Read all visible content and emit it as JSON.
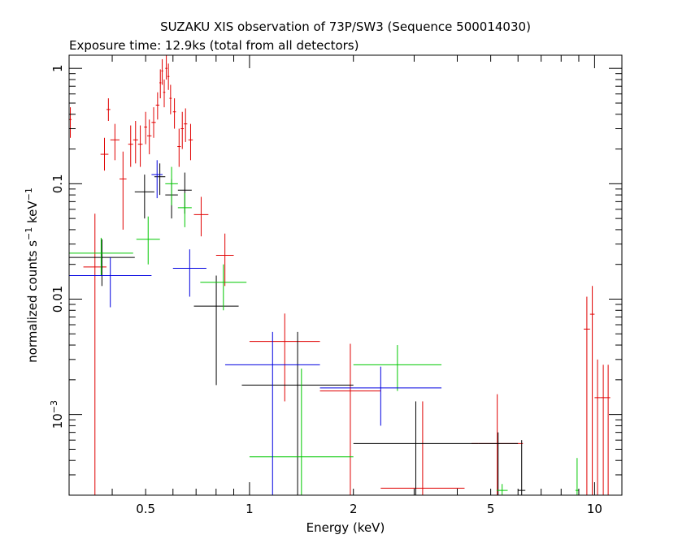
{
  "chart_data": {
    "type": "scatter",
    "title": "SUZAKU XIS observation of 73P/SW3 (Sequence 500014030)",
    "subtitle": "Exposure time: 12.9ks (total from all detectors)",
    "xlabel": "Energy (keV)",
    "ylabel_main": "normalized counts s",
    "ylabel_sup1": "−1",
    "ylabel_mid": " keV",
    "ylabel_sup2": "−1",
    "x_scale": "log",
    "y_scale": "log",
    "xlim": [
      0.3,
      12
    ],
    "ylim": [
      0.0002,
      1.3
    ],
    "x_ticks": [
      {
        "value": 0.5,
        "label": "0.5"
      },
      {
        "value": 1,
        "label": "1"
      },
      {
        "value": 2,
        "label": "2"
      },
      {
        "value": 5,
        "label": "5"
      },
      {
        "value": 10,
        "label": "10"
      }
    ],
    "y_ticks": [
      {
        "value": 0.001,
        "label_base": "10",
        "label_sup": "−3"
      },
      {
        "value": 0.01,
        "label_base": "0.01",
        "label_sup": ""
      },
      {
        "value": 0.1,
        "label_base": "0.1",
        "label_sup": ""
      },
      {
        "value": 1,
        "label_base": "1",
        "label_sup": ""
      }
    ],
    "grid": false,
    "series": [
      {
        "color": "#e00000",
        "points": [
          [
            0.3,
            0.305,
            0.36,
            0.25,
            0.46
          ],
          [
            0.33,
            0.385,
            0.019,
            0.0002,
            0.055
          ],
          [
            0.37,
            0.39,
            0.18,
            0.13,
            0.25
          ],
          [
            0.385,
            0.395,
            0.44,
            0.35,
            0.55
          ],
          [
            0.395,
            0.42,
            0.24,
            0.16,
            0.33
          ],
          [
            0.42,
            0.44,
            0.11,
            0.04,
            0.19
          ],
          [
            0.445,
            0.46,
            0.22,
            0.14,
            0.32
          ],
          [
            0.46,
            0.475,
            0.24,
            0.15,
            0.35
          ],
          [
            0.475,
            0.49,
            0.22,
            0.14,
            0.32
          ],
          [
            0.495,
            0.505,
            0.31,
            0.22,
            0.42
          ],
          [
            0.505,
            0.52,
            0.26,
            0.18,
            0.36
          ],
          [
            0.52,
            0.535,
            0.34,
            0.25,
            0.46
          ],
          [
            0.535,
            0.548,
            0.48,
            0.36,
            0.62
          ],
          [
            0.548,
            0.555,
            0.75,
            0.55,
            0.98
          ],
          [
            0.555,
            0.562,
            0.95,
            0.72,
            1.2
          ],
          [
            0.562,
            0.57,
            0.62,
            0.46,
            0.8
          ],
          [
            0.57,
            0.578,
            1.0,
            0.8,
            1.3
          ],
          [
            0.578,
            0.586,
            0.85,
            0.65,
            1.1
          ],
          [
            0.586,
            0.595,
            0.55,
            0.4,
            0.72
          ],
          [
            0.6,
            0.612,
            0.42,
            0.3,
            0.55
          ],
          [
            0.618,
            0.632,
            0.21,
            0.14,
            0.3
          ],
          [
            0.632,
            0.645,
            0.3,
            0.2,
            0.42
          ],
          [
            0.645,
            0.66,
            0.33,
            0.23,
            0.45
          ],
          [
            0.665,
            0.685,
            0.24,
            0.16,
            0.33
          ],
          [
            0.69,
            0.76,
            0.054,
            0.035,
            0.077
          ],
          [
            0.8,
            0.9,
            0.024,
            0.013,
            0.037
          ],
          [
            1.0,
            1.6,
            0.0043,
            0.0013,
            0.0075
          ],
          [
            1.6,
            2.4,
            0.0016,
            0.0002,
            0.0041
          ],
          [
            2.4,
            4.2,
            0.00023,
            0.0002,
            0.0013
          ],
          [
            4.4,
            6.2,
            0.00056,
            0.0002,
            0.0015
          ],
          [
            9.3,
            9.7,
            0.0055,
            0.0002,
            0.0105
          ],
          [
            9.7,
            10.0,
            0.0074,
            0.0002,
            0.013
          ],
          [
            10.0,
            10.4,
            0.0014,
            0.0002,
            0.003
          ],
          [
            10.4,
            10.8,
            0.0014,
            0.0002,
            0.0027
          ],
          [
            10.8,
            11.1,
            0.0014,
            0.0002,
            0.0027
          ]
        ]
      },
      {
        "color": "#000000",
        "points": [
          [
            0.3,
            0.465,
            0.023,
            0.013,
            0.033
          ],
          [
            0.465,
            0.53,
            0.085,
            0.05,
            0.12
          ],
          [
            0.53,
            0.57,
            0.115,
            0.08,
            0.15
          ],
          [
            0.57,
            0.62,
            0.08,
            0.05,
            0.11
          ],
          [
            0.62,
            0.68,
            0.088,
            0.055,
            0.125
          ],
          [
            0.69,
            0.93,
            0.0087,
            0.0018,
            0.016
          ],
          [
            0.95,
            2.0,
            0.0018,
            0.0002,
            0.0052
          ],
          [
            2.0,
            4.6,
            0.00056,
            0.0002,
            0.0013
          ],
          [
            4.6,
            6.0,
            0.00056,
            0.0002,
            0.0007
          ],
          [
            6.0,
            6.3,
            0.00022,
            0.0002,
            0.0006
          ]
        ]
      },
      {
        "color": "#00c800",
        "points": [
          [
            0.3,
            0.46,
            0.025,
            0.016,
            0.034
          ],
          [
            0.47,
            0.55,
            0.033,
            0.02,
            0.052
          ],
          [
            0.57,
            0.62,
            0.1,
            0.065,
            0.14
          ],
          [
            0.62,
            0.68,
            0.062,
            0.042,
            0.083
          ],
          [
            0.72,
            0.98,
            0.014,
            0.008,
            0.02
          ],
          [
            1.0,
            2.0,
            0.00043,
            0.0002,
            0.0025
          ],
          [
            2.0,
            3.6,
            0.0027,
            0.0016,
            0.004
          ],
          [
            5.2,
            5.6,
            0.00022,
            0.0002,
            0.00025
          ],
          [
            8.8,
            9.0,
            0.00022,
            0.0002,
            0.00042
          ]
        ]
      },
      {
        "color": "#0000e0",
        "points": [
          [
            0.3,
            0.52,
            0.016,
            0.0085,
            0.023
          ],
          [
            0.52,
            0.56,
            0.12,
            0.075,
            0.16
          ],
          [
            0.6,
            0.75,
            0.0185,
            0.0105,
            0.027
          ],
          [
            0.85,
            1.6,
            0.0027,
            0.0002,
            0.0052
          ],
          [
            1.6,
            3.6,
            0.0017,
            0.0008,
            0.0026
          ]
        ]
      }
    ]
  }
}
